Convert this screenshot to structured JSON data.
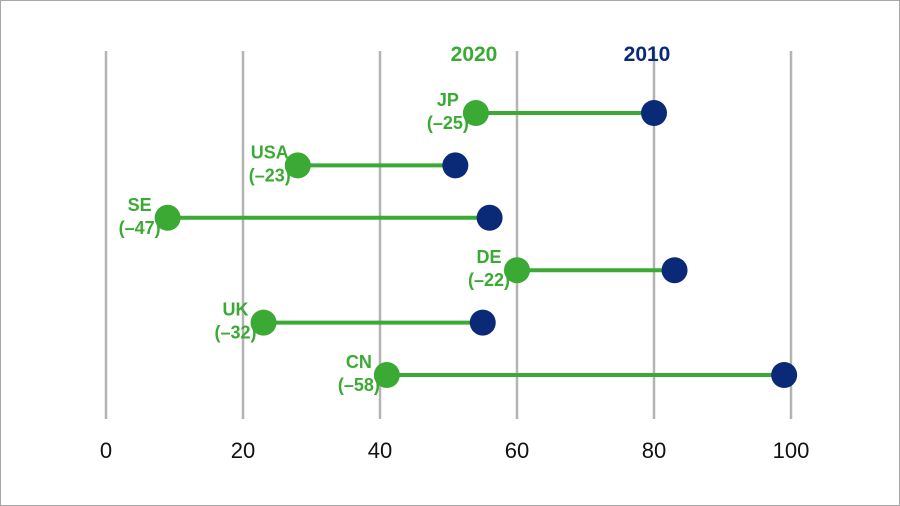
{
  "chart_data": {
    "type": "dumbbell",
    "title": "",
    "xlabel": "",
    "ylabel": "",
    "xlim": [
      0,
      100
    ],
    "xticks": [
      "0",
      "20",
      "40",
      "60",
      "80",
      "100"
    ],
    "grid": true,
    "legend": {
      "position": "top",
      "entries": [
        "2020",
        "2010"
      ]
    },
    "series": [
      {
        "name": "2020",
        "color": "#3aaa35"
      },
      {
        "name": "2010",
        "color": "#0a2a78"
      }
    ],
    "rows": [
      {
        "country": "JP",
        "value_2020": 54,
        "value_2010": 80,
        "change_label": "(–25)"
      },
      {
        "country": "USA",
        "value_2020": 28,
        "value_2010": 51,
        "change_label": "(–23)"
      },
      {
        "country": "SE",
        "value_2020": 9,
        "value_2010": 56,
        "change_label": "(–47)"
      },
      {
        "country": "DE",
        "value_2020": 60,
        "value_2010": 83,
        "change_label": "(–22)"
      },
      {
        "country": "UK",
        "value_2020": 23,
        "value_2010": 55,
        "change_label": "(–32)"
      },
      {
        "country": "CN",
        "value_2020": 41,
        "value_2010": 99,
        "change_label": "(–58)"
      }
    ]
  }
}
